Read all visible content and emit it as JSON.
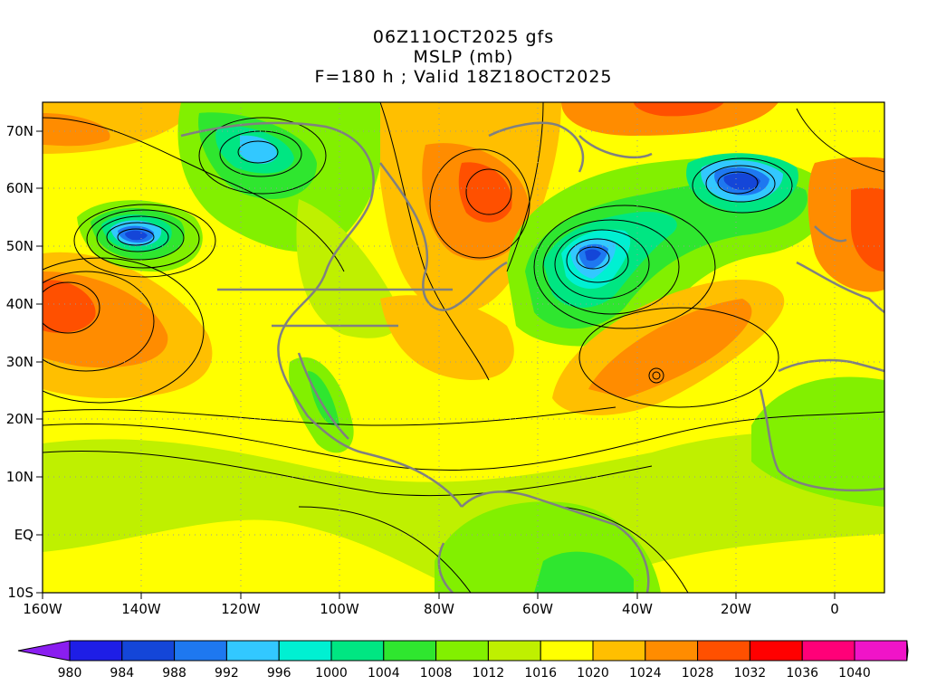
{
  "title": {
    "line1": "06Z11OCT2025 gfs",
    "line2": "MSLP (mb)",
    "line3": "F=180 h ; Valid 18Z18OCT2025"
  },
  "map": {
    "lat_ticks": [
      "70N",
      "60N",
      "50N",
      "40N",
      "30N",
      "20N",
      "10N",
      "EQ",
      "10S"
    ],
    "lon_ticks": [
      "160W",
      "140W",
      "120W",
      "100W",
      "80W",
      "60W",
      "40W",
      "20W",
      "0"
    ],
    "extent": {
      "lon": [
        -160,
        10
      ],
      "lat": [
        -10,
        75
      ]
    },
    "gridlines": true,
    "pressure_centers": [
      {
        "kind": "low",
        "lon": -140,
        "lat": 51,
        "value": 982
      },
      {
        "kind": "low",
        "lon": -48,
        "lat": 48,
        "value": 986
      },
      {
        "kind": "low",
        "lon": -17,
        "lat": 59,
        "value": 986
      },
      {
        "kind": "low",
        "lon": -112,
        "lat": 67,
        "value": 992
      },
      {
        "kind": "high",
        "lon": -158,
        "lat": 40,
        "value": 1030
      },
      {
        "kind": "high",
        "lon": -71,
        "lat": 59,
        "value": 1028
      },
      {
        "kind": "high",
        "lon": -35,
        "lat": 28,
        "value": 1026
      }
    ]
  },
  "colorbar": {
    "labels": [
      "980",
      "984",
      "988",
      "992",
      "996",
      "1000",
      "1004",
      "1008",
      "1012",
      "1016",
      "1020",
      "1024",
      "1028",
      "1032",
      "1036",
      "1040"
    ],
    "colors": [
      "#8a1ef0",
      "#1e1ee6",
      "#1446d8",
      "#1e78f0",
      "#32c8ff",
      "#00f0d2",
      "#00e682",
      "#2fe62f",
      "#82f000",
      "#bff000",
      "#ffff00",
      "#ffbf00",
      "#ff8c00",
      "#ff5000",
      "#ff0000",
      "#ff0078",
      "#f014c8",
      "#ff00ff"
    ]
  }
}
